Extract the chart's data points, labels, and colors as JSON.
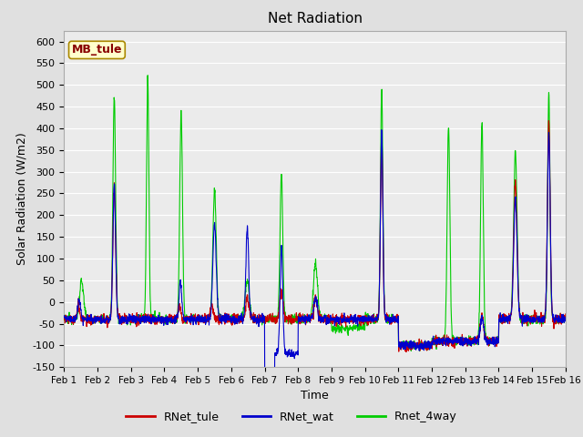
{
  "title": "Net Radiation",
  "xlabel": "Time",
  "ylabel": "Solar Radiation (W/m2)",
  "ylim": [
    -150,
    625
  ],
  "yticks": [
    -150,
    -100,
    -50,
    0,
    50,
    100,
    150,
    200,
    250,
    300,
    350,
    400,
    450,
    500,
    550,
    600
  ],
  "xtick_labels": [
    "Feb 1",
    "Feb 2",
    "Feb 3",
    "Feb 4",
    "Feb 5",
    "Feb 6",
    "Feb 7",
    "Feb 8",
    "Feb 9",
    "Feb 10",
    "Feb 11",
    "Feb 12",
    "Feb 13",
    "Feb 14",
    "Feb 15",
    "Feb 16"
  ],
  "colors": {
    "RNet_tule": "#cc0000",
    "RNet_wat": "#0000cc",
    "Rnet_4way": "#00cc00",
    "background": "#e0e0e0",
    "plot_bg": "#ebebeb",
    "grid": "#ffffff"
  },
  "station_label": "MB_tule",
  "station_label_bg": "#ffffcc",
  "station_label_border": "#aa8800",
  "legend_entries": [
    "RNet_tule",
    "RNet_wat",
    "Rnet_4way"
  ],
  "n_days": 15,
  "pts_per_day": 144
}
